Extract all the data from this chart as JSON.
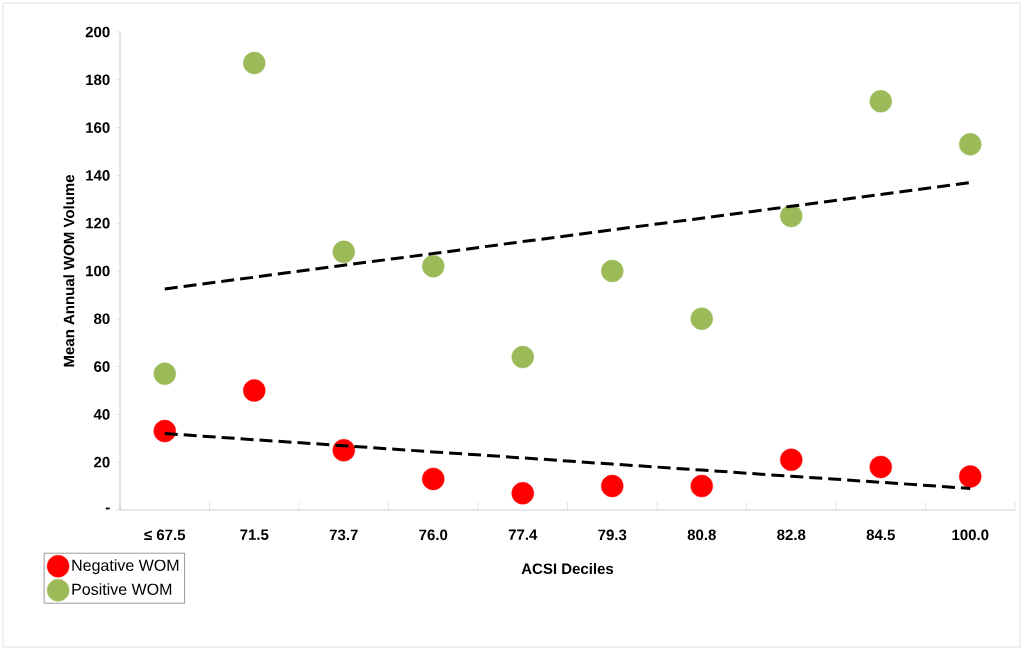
{
  "chart_data": {
    "type": "scatter",
    "xlabel": "ACSI Deciles",
    "ylabel": "Mean Annual WOM Volume",
    "categories": [
      "≤ 67.5",
      "71.5",
      "73.7",
      "76.0",
      "77.4",
      "79.3",
      "80.8",
      "82.8",
      "84.5",
      "100.0"
    ],
    "series": [
      {
        "name": "Negative WOM",
        "color": "#ff0000",
        "marker": "circle",
        "values": [
          33,
          50,
          25,
          13,
          7,
          10,
          10,
          21,
          18,
          14
        ]
      },
      {
        "name": "Positive WOM",
        "color": "#9bbb59",
        "marker": "circle",
        "values": [
          57,
          187,
          108,
          102,
          64,
          100,
          80,
          123,
          171,
          153
        ]
      },
      {
        "type": "line",
        "color": "#000000",
        "line_style": "dashed",
        "marker": "none",
        "values": [
          92.5,
          97.4,
          102.4,
          107.3,
          112.3,
          117.2,
          122.1,
          127.1,
          132.0,
          137.0
        ]
      },
      {
        "type": "line",
        "color": "#000000",
        "line_style": "dashed",
        "marker": "none",
        "values": [
          32,
          29.4,
          26.9,
          24.3,
          21.8,
          19.2,
          16.7,
          14.1,
          11.6,
          9
        ]
      }
    ],
    "grid": false,
    "legend": "bottom left",
    "ylim": [
      0,
      200
    ],
    "yticks": [
      {
        "value": 0,
        "label": "-"
      },
      20,
      40,
      60,
      80,
      100,
      120,
      140,
      160,
      180,
      200
    ]
  }
}
